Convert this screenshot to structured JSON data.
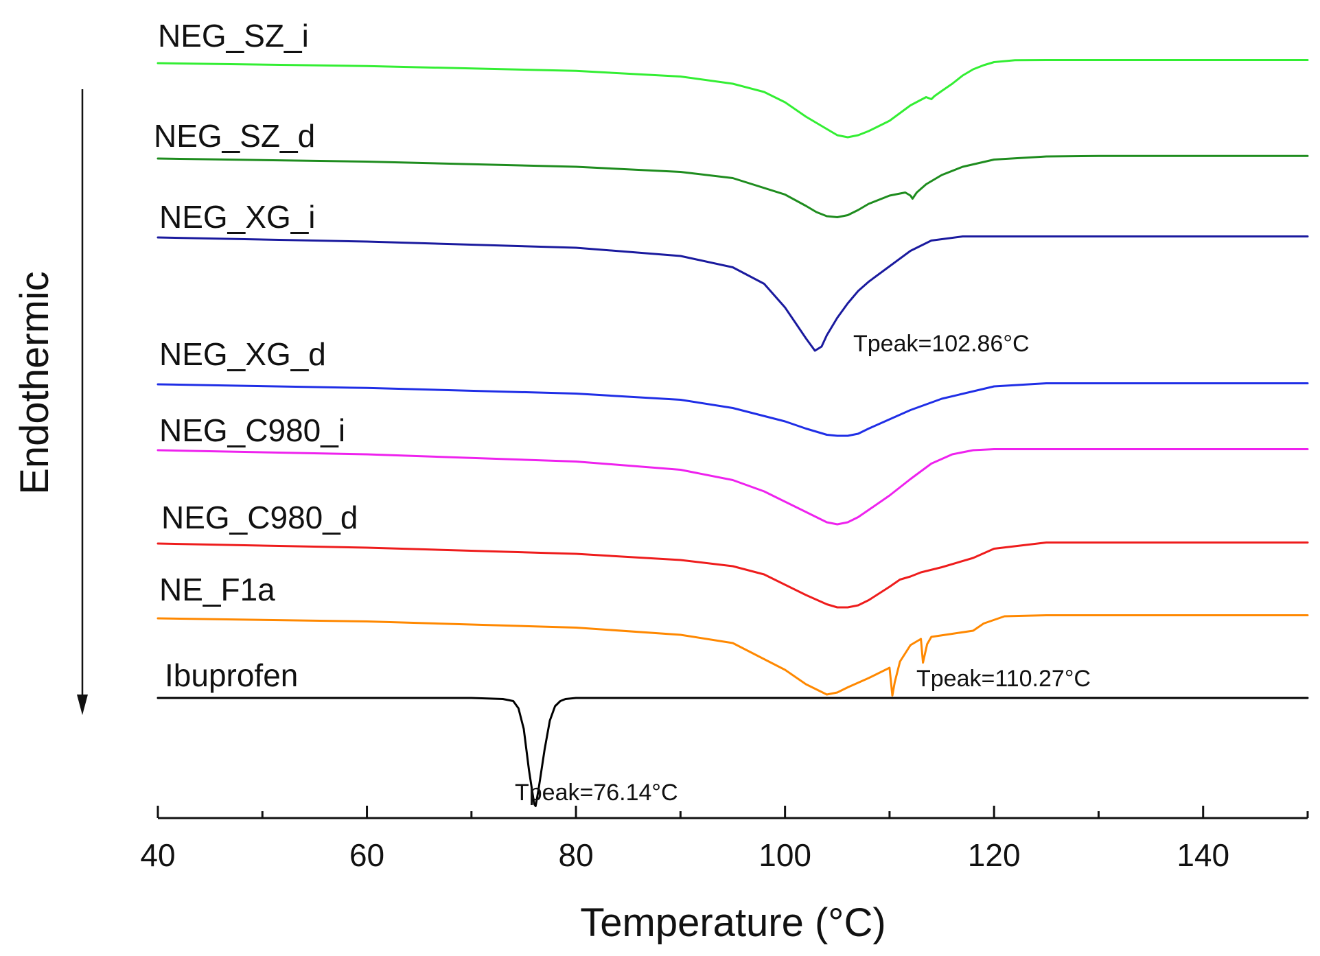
{
  "chart_data": {
    "type": "line",
    "title": "",
    "xlabel": "Temperature (°C)",
    "ylabel": "Endothermic",
    "xlim": [
      40,
      150
    ],
    "xticks_major": [
      40,
      60,
      80,
      100,
      120,
      140
    ],
    "xticks_minor": [
      50,
      70,
      90,
      110,
      130,
      150
    ],
    "y_axis_shown": false,
    "y_direction": "down",
    "series": [
      {
        "name": "NEG_SZ_i",
        "color": "#33ee33",
        "x": [
          40,
          60,
          80,
          90,
          95,
          98,
          100,
          102,
          104,
          105,
          106,
          107,
          108,
          110,
          112,
          113.5,
          114,
          114.3,
          115,
          116,
          117,
          118,
          119,
          120,
          122,
          125,
          130,
          140,
          150
        ],
        "y": [
          0,
          0.28,
          0.75,
          1.3,
          2.0,
          2.8,
          3.8,
          5.2,
          6.4,
          7.0,
          7.2,
          7.0,
          6.6,
          5.6,
          4.1,
          3.3,
          3.5,
          3.2,
          2.7,
          2.0,
          1.2,
          0.6,
          0.2,
          -0.1,
          -0.28,
          -0.3,
          -0.3,
          -0.3,
          -0.3
        ]
      },
      {
        "name": "NEG_SZ_d",
        "color": "#1e8c1e",
        "x": [
          40,
          60,
          80,
          90,
          95,
          100,
          102,
          103,
          104,
          105,
          106,
          107,
          108,
          110,
          111.5,
          112,
          112.2,
          112.6,
          113.5,
          115,
          117,
          120,
          125,
          130,
          150
        ],
        "y": [
          0,
          0.3,
          0.8,
          1.3,
          1.9,
          3.5,
          4.6,
          5.2,
          5.6,
          5.7,
          5.5,
          5.0,
          4.4,
          3.6,
          3.3,
          3.6,
          3.9,
          3.3,
          2.5,
          1.6,
          0.8,
          0.1,
          -0.2,
          -0.25,
          -0.25
        ]
      },
      {
        "name": "NEG_XG_i",
        "color": "#1a1a9e",
        "x": [
          40,
          60,
          80,
          90,
          95,
          98,
          100,
          101,
          102,
          102.86,
          103.5,
          104,
          105,
          106,
          107,
          108,
          110,
          112,
          114,
          117,
          120,
          125,
          130,
          150
        ],
        "y": [
          0,
          0.4,
          1.0,
          1.8,
          2.9,
          4.5,
          6.8,
          8.3,
          9.8,
          11.0,
          10.6,
          9.5,
          7.8,
          6.4,
          5.2,
          4.3,
          2.8,
          1.3,
          0.3,
          -0.1,
          -0.1,
          -0.1,
          -0.1,
          -0.1
        ]
      },
      {
        "name": "NEG_XG_d",
        "color": "#1f2ee6",
        "x": [
          40,
          60,
          80,
          90,
          95,
          100,
          102,
          104,
          105,
          106,
          107,
          108,
          110,
          112,
          115,
          120,
          125,
          130,
          150
        ],
        "y": [
          0,
          0.35,
          0.9,
          1.5,
          2.3,
          3.6,
          4.3,
          4.9,
          5.0,
          5.0,
          4.8,
          4.3,
          3.4,
          2.5,
          1.4,
          0.2,
          -0.1,
          -0.1,
          -0.1
        ]
      },
      {
        "name": "NEG_C980_i",
        "color": "#ee22ee",
        "x": [
          40,
          60,
          80,
          90,
          95,
          98,
          100,
          102,
          104,
          105,
          106,
          107,
          108,
          110,
          112,
          114,
          116,
          118,
          120,
          125,
          130,
          150
        ],
        "y": [
          0,
          0.4,
          1.1,
          1.9,
          2.9,
          4.0,
          5.0,
          6.0,
          7.0,
          7.2,
          7.0,
          6.5,
          5.8,
          4.4,
          2.8,
          1.3,
          0.4,
          0.0,
          -0.1,
          -0.1,
          -0.1,
          -0.1
        ]
      },
      {
        "name": "NEG_C980_d",
        "color": "#ee1c1c",
        "x": [
          40,
          60,
          80,
          90,
          95,
          98,
          100,
          102,
          104,
          105,
          106,
          107,
          108,
          110,
          111,
          112,
          113,
          115,
          118,
          120,
          125,
          130,
          150
        ],
        "y": [
          0,
          0.4,
          1.0,
          1.6,
          2.2,
          3.0,
          4.0,
          5.0,
          5.9,
          6.2,
          6.2,
          6.0,
          5.5,
          4.2,
          3.5,
          3.2,
          2.8,
          2.3,
          1.4,
          0.5,
          -0.1,
          -0.1,
          -0.1
        ]
      },
      {
        "name": "NE_F1a",
        "color": "#ff8800",
        "x": [
          40,
          60,
          80,
          90,
          95,
          100,
          102,
          104,
          105,
          106,
          108,
          110,
          110.27,
          110.5,
          111,
          112,
          113,
          113.2,
          113.6,
          114,
          116,
          118,
          119,
          121,
          125,
          130,
          150
        ],
        "y": [
          0,
          0.3,
          0.9,
          1.6,
          2.4,
          5.0,
          6.4,
          7.4,
          7.2,
          6.7,
          5.8,
          4.8,
          7.5,
          6.2,
          4.2,
          2.6,
          2.0,
          4.3,
          2.5,
          1.8,
          1.5,
          1.2,
          0.5,
          -0.2,
          -0.3,
          -0.3,
          -0.3
        ]
      },
      {
        "name": "Ibuprofen",
        "color": "#000000",
        "x": [
          40,
          60,
          70,
          73,
          74,
          74.5,
          75,
          75.5,
          76,
          76.14,
          76.4,
          77,
          77.5,
          78,
          78.5,
          79,
          80,
          100,
          150
        ],
        "y": [
          0,
          0,
          0,
          0.1,
          0.3,
          1.0,
          3.0,
          7.0,
          10.3,
          10.5,
          9.0,
          5.0,
          2.2,
          0.8,
          0.3,
          0.1,
          0,
          0,
          0
        ]
      }
    ],
    "annotations": [
      "Tpeak=102.86°C",
      "Tpeak=110.27°C",
      "Tpeak=76.14°C"
    ]
  }
}
